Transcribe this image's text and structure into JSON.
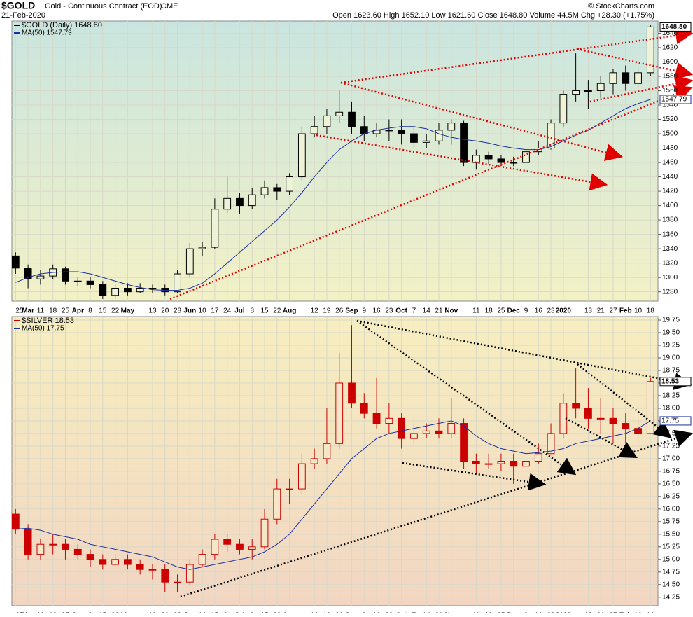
{
  "header": {
    "symbol": "$GOLD",
    "description": "Gold - Continuous Contract (EOD)",
    "exchange": "CME",
    "date": "21-Feb-2020",
    "stats": "Open 1623.60 High 1652.10 Low 1621.60 Close 1648.80 Volume 44.5M Chg +28.30 (+1.75%)",
    "credit": "© StockCharts.com"
  },
  "chart_data": [
    {
      "type": "candlestick",
      "legend": "$GOLD (Daily) 1648.80",
      "last_label": "1648.80",
      "x": [
        0,
        1,
        2,
        3,
        4,
        5,
        6,
        7,
        8,
        9,
        10,
        11,
        12,
        13,
        14,
        15,
        16,
        17,
        18,
        19,
        20,
        21,
        22,
        23,
        24,
        25,
        26,
        27,
        28,
        29,
        30,
        31,
        32,
        33,
        34,
        35,
        36,
        37,
        38,
        39,
        40,
        41,
        42,
        43,
        44,
        45,
        46,
        47,
        48,
        49,
        50,
        51
      ],
      "open": [
        1330,
        1313,
        1298,
        1302,
        1312,
        1295,
        1295,
        1290,
        1275,
        1285,
        1280,
        1285,
        1285,
        1280,
        1305,
        1340,
        1342,
        1395,
        1410,
        1400,
        1415,
        1425,
        1420,
        1440,
        1500,
        1510,
        1525,
        1530,
        1510,
        1500,
        1505,
        1505,
        1500,
        1488,
        1490,
        1505,
        1515,
        1460,
        1470,
        1465,
        1460,
        1460,
        1475,
        1480,
        1515,
        1555,
        1560,
        1560,
        1570,
        1585,
        1570,
        1585
      ],
      "high": [
        1335,
        1318,
        1310,
        1318,
        1315,
        1300,
        1300,
        1295,
        1290,
        1292,
        1292,
        1290,
        1290,
        1310,
        1348,
        1350,
        1410,
        1440,
        1418,
        1425,
        1435,
        1430,
        1445,
        1510,
        1525,
        1535,
        1560,
        1545,
        1525,
        1515,
        1520,
        1520,
        1510,
        1500,
        1515,
        1520,
        1518,
        1478,
        1475,
        1470,
        1468,
        1485,
        1490,
        1520,
        1560,
        1612,
        1575,
        1580,
        1590,
        1595,
        1592,
        1652
      ],
      "low": [
        1305,
        1285,
        1290,
        1298,
        1290,
        1288,
        1285,
        1270,
        1272,
        1275,
        1278,
        1278,
        1275,
        1278,
        1300,
        1330,
        1340,
        1390,
        1388,
        1395,
        1410,
        1408,
        1415,
        1435,
        1495,
        1500,
        1515,
        1500,
        1490,
        1495,
        1490,
        1485,
        1480,
        1480,
        1485,
        1485,
        1455,
        1450,
        1458,
        1455,
        1455,
        1458,
        1470,
        1478,
        1510,
        1545,
        1535,
        1550,
        1555,
        1560,
        1565,
        1580
      ],
      "close": [
        1313,
        1298,
        1302,
        1312,
        1295,
        1295,
        1290,
        1275,
        1285,
        1280,
        1285,
        1285,
        1280,
        1305,
        1340,
        1342,
        1395,
        1410,
        1400,
        1415,
        1425,
        1420,
        1440,
        1500,
        1510,
        1525,
        1530,
        1510,
        1500,
        1505,
        1505,
        1500,
        1488,
        1490,
        1505,
        1515,
        1460,
        1470,
        1465,
        1460,
        1460,
        1475,
        1480,
        1515,
        1555,
        1560,
        1560,
        1570,
        1585,
        1570,
        1585,
        1648.8
      ],
      "color": "#000000",
      "ma": {
        "name": "MA(50) 1547.79",
        "last_label": "1547.79",
        "color": "#1a2fa0",
        "values": [
          1293,
          1300,
          1305,
          1307,
          1308,
          1308,
          1305,
          1300,
          1295,
          1290,
          1286,
          1283,
          1282,
          1282,
          1285,
          1292,
          1305,
          1320,
          1335,
          1350,
          1365,
          1380,
          1398,
          1418,
          1440,
          1460,
          1478,
          1490,
          1500,
          1505,
          1508,
          1510,
          1510,
          1507,
          1500,
          1495,
          1492,
          1490,
          1487,
          1483,
          1480,
          1478,
          1478,
          1482,
          1490,
          1498,
          1505,
          1515,
          1525,
          1535,
          1542,
          1547.79
        ]
      },
      "xlim": [
        -0.3,
        51.6
      ],
      "ylim": [
        1267,
        1657
      ],
      "yticks": [
        1280,
        1300,
        1320,
        1340,
        1360,
        1380,
        1400,
        1420,
        1440,
        1460,
        1480,
        1500,
        1520,
        1540,
        1560,
        1580,
        1600,
        1620,
        1640
      ],
      "xticks": [
        {
          "value": 0,
          "label": "25"
        },
        {
          "value": 1,
          "label": "Mar"
        },
        {
          "value": 2,
          "label": "11"
        },
        {
          "value": 3,
          "label": "18"
        },
        {
          "value": 4,
          "label": "25"
        },
        {
          "value": 5,
          "label": "Apr"
        },
        {
          "value": 6,
          "label": "8"
        },
        {
          "value": 7,
          "label": "15"
        },
        {
          "value": 8,
          "label": "22"
        },
        {
          "value": 9,
          "label": "May"
        },
        {
          "value": 11,
          "label": "13"
        },
        {
          "value": 12,
          "label": "20"
        },
        {
          "value": 13,
          "label": "28"
        },
        {
          "value": 14,
          "label": "Jun"
        },
        {
          "value": 15,
          "label": "10"
        },
        {
          "value": 16,
          "label": "17"
        },
        {
          "value": 17,
          "label": "24"
        },
        {
          "value": 18,
          "label": "Jul"
        },
        {
          "value": 19,
          "label": "8"
        },
        {
          "value": 20,
          "label": "15"
        },
        {
          "value": 21,
          "label": "22"
        },
        {
          "value": 22,
          "label": "Aug"
        },
        {
          "value": 24,
          "label": "12"
        },
        {
          "value": 25,
          "label": "19"
        },
        {
          "value": 26,
          "label": "26"
        },
        {
          "value": 27,
          "label": "Sep"
        },
        {
          "value": 28,
          "label": "9"
        },
        {
          "value": 29,
          "label": "16"
        },
        {
          "value": 30,
          "label": "23"
        },
        {
          "value": 31,
          "label": "Oct"
        },
        {
          "value": 32,
          "label": "7"
        },
        {
          "value": 33,
          "label": "14"
        },
        {
          "value": 34,
          "label": "21"
        },
        {
          "value": 35,
          "label": "Nov"
        },
        {
          "value": 37,
          "label": "11"
        },
        {
          "value": 38,
          "label": "18"
        },
        {
          "value": 39,
          "label": "25"
        },
        {
          "value": 40,
          "label": "Dec"
        },
        {
          "value": 41,
          "label": "9"
        },
        {
          "value": 42,
          "label": "16"
        },
        {
          "value": 43,
          "label": "23"
        },
        {
          "value": 44,
          "label": "2020"
        },
        {
          "value": 46,
          "label": "13"
        },
        {
          "value": 47,
          "label": "21"
        },
        {
          "value": 48,
          "label": "27"
        },
        {
          "value": 49,
          "label": "Feb"
        },
        {
          "value": 50,
          "label": "10"
        },
        {
          "value": 51,
          "label": "18"
        }
      ],
      "grid": true
    },
    {
      "type": "candlestick",
      "legend": "$SILVER 18.53",
      "last_label": "18.53",
      "x": [
        0,
        1,
        2,
        3,
        4,
        5,
        6,
        7,
        8,
        9,
        10,
        11,
        12,
        13,
        14,
        15,
        16,
        17,
        18,
        19,
        20,
        21,
        22,
        23,
        24,
        25,
        26,
        27,
        28,
        29,
        30,
        31,
        32,
        33,
        34,
        35,
        36,
        37,
        38,
        39,
        40,
        41,
        42,
        43,
        44,
        45,
        46,
        47,
        48,
        49,
        50,
        51
      ],
      "open": [
        15.9,
        15.6,
        15.1,
        15.3,
        15.3,
        15.2,
        15.1,
        15.0,
        14.9,
        15.0,
        14.9,
        14.8,
        14.8,
        14.55,
        14.55,
        14.9,
        15.1,
        15.4,
        15.3,
        15.2,
        15.25,
        15.8,
        16.4,
        16.4,
        16.9,
        17.0,
        17.3,
        18.5,
        18.1,
        17.9,
        17.7,
        17.8,
        17.4,
        17.5,
        17.55,
        17.5,
        17.7,
        16.95,
        16.9,
        16.9,
        16.95,
        16.85,
        16.95,
        17.1,
        17.5,
        18.1,
        18.0,
        17.8,
        17.8,
        17.7,
        17.6,
        17.5
      ],
      "high": [
        16.0,
        15.7,
        15.4,
        15.5,
        15.4,
        15.3,
        15.2,
        15.1,
        15.1,
        15.1,
        15.0,
        14.9,
        14.9,
        14.7,
        15.0,
        15.2,
        15.5,
        15.5,
        15.4,
        15.4,
        16.0,
        16.6,
        16.6,
        17.1,
        17.2,
        18.0,
        19.1,
        19.65,
        18.3,
        18.6,
        18.1,
        17.9,
        17.7,
        17.7,
        17.8,
        18.2,
        17.8,
        17.1,
        17.1,
        17.1,
        17.1,
        17.1,
        17.3,
        17.7,
        18.3,
        18.8,
        18.4,
        18.2,
        18.0,
        17.9,
        17.8,
        18.6
      ],
      "low": [
        15.5,
        15.0,
        15.0,
        15.1,
        15.0,
        15.0,
        14.85,
        14.8,
        14.85,
        14.8,
        14.7,
        14.6,
        14.35,
        14.35,
        14.5,
        14.85,
        15.0,
        15.15,
        15.1,
        15.0,
        15.2,
        15.7,
        16.1,
        16.3,
        16.8,
        16.9,
        17.2,
        18.0,
        17.8,
        17.6,
        17.5,
        17.2,
        17.3,
        17.4,
        17.4,
        17.4,
        16.8,
        16.7,
        16.8,
        16.75,
        16.5,
        16.7,
        16.9,
        17.1,
        17.4,
        17.8,
        17.6,
        17.5,
        17.3,
        17.3,
        17.3,
        17.5
      ],
      "close": [
        15.6,
        15.1,
        15.3,
        15.3,
        15.2,
        15.1,
        15.0,
        14.9,
        15.0,
        14.9,
        14.8,
        14.8,
        14.55,
        14.55,
        14.9,
        15.1,
        15.4,
        15.3,
        15.2,
        15.25,
        15.8,
        16.4,
        16.4,
        16.9,
        17.0,
        17.3,
        18.5,
        18.1,
        17.9,
        17.7,
        17.8,
        17.4,
        17.5,
        17.55,
        17.5,
        17.7,
        16.95,
        16.9,
        16.9,
        16.95,
        16.85,
        16.95,
        17.1,
        17.5,
        18.1,
        18.0,
        17.8,
        17.8,
        17.7,
        17.6,
        17.5,
        18.53
      ],
      "color": "#cc0000",
      "ma": {
        "name": "MA(50) 17.75",
        "last_label": "17.75",
        "color": "#1a2fa0",
        "values": [
          15.6,
          15.62,
          15.58,
          15.5,
          15.45,
          15.4,
          15.3,
          15.25,
          15.2,
          15.15,
          15.1,
          15.05,
          14.95,
          14.85,
          14.8,
          14.85,
          14.9,
          14.95,
          15.0,
          15.05,
          15.15,
          15.3,
          15.5,
          15.8,
          16.1,
          16.4,
          16.7,
          17.0,
          17.2,
          17.4,
          17.5,
          17.55,
          17.6,
          17.65,
          17.7,
          17.75,
          17.65,
          17.45,
          17.3,
          17.2,
          17.15,
          17.1,
          17.12,
          17.15,
          17.2,
          17.3,
          17.35,
          17.4,
          17.45,
          17.5,
          17.6,
          17.75
        ]
      },
      "xlim": [
        -0.3,
        51.6
      ],
      "ylim": [
        14.08,
        19.82
      ],
      "yticks": [
        14.25,
        {
          "value": 14.5,
          "label": "14.50"
        },
        14.75,
        {
          "value": 15,
          "label": "15.00"
        },
        15.25,
        {
          "value": 15.5,
          "label": "15.50"
        },
        15.75,
        {
          "value": 16,
          "label": "16.00"
        },
        16.25,
        {
          "value": 16.5,
          "label": "16.50"
        },
        16.75,
        {
          "value": 17,
          "label": "17.00"
        },
        17.25,
        {
          "value": 17.5,
          "label": "17.50"
        },
        17.75,
        {
          "value": 18,
          "label": "18.00"
        },
        18.25,
        {
          "value": 18.5,
          "label": "18.50"
        },
        18.75,
        {
          "value": 19,
          "label": "19.00"
        },
        19.25,
        {
          "value": 19.5,
          "label": "19.50"
        },
        19.75
      ],
      "xticks": [
        {
          "value": 0,
          "label": "25"
        },
        {
          "value": 1,
          "label": "Mar"
        },
        {
          "value": 2,
          "label": "11"
        },
        {
          "value": 3,
          "label": "18"
        },
        {
          "value": 4,
          "label": "25"
        },
        {
          "value": 5,
          "label": "Apr"
        },
        {
          "value": 6,
          "label": "8"
        },
        {
          "value": 7,
          "label": "15"
        },
        {
          "value": 8,
          "label": "22"
        },
        {
          "value": 9,
          "label": "May"
        },
        {
          "value": 11,
          "label": "13"
        },
        {
          "value": 12,
          "label": "20"
        },
        {
          "value": 13,
          "label": "28"
        },
        {
          "value": 14,
          "label": "Jun"
        },
        {
          "value": 15,
          "label": "10"
        },
        {
          "value": 16,
          "label": "17"
        },
        {
          "value": 17,
          "label": "24"
        },
        {
          "value": 18,
          "label": "Jul"
        },
        {
          "value": 19,
          "label": "8"
        },
        {
          "value": 20,
          "label": "15"
        },
        {
          "value": 21,
          "label": "22"
        },
        {
          "value": 22,
          "label": "Aug"
        },
        {
          "value": 24,
          "label": "12"
        },
        {
          "value": 25,
          "label": "19"
        },
        {
          "value": 26,
          "label": "26"
        },
        {
          "value": 27,
          "label": "Sep"
        },
        {
          "value": 28,
          "label": "9"
        },
        {
          "value": 29,
          "label": "16"
        },
        {
          "value": 30,
          "label": "23"
        },
        {
          "value": 31,
          "label": "Oct"
        },
        {
          "value": 32,
          "label": "7"
        },
        {
          "value": 33,
          "label": "14"
        },
        {
          "value": 34,
          "label": "21"
        },
        {
          "value": 35,
          "label": "Nov"
        },
        {
          "value": 37,
          "label": "11"
        },
        {
          "value": 38,
          "label": "18"
        },
        {
          "value": 39,
          "label": "25"
        },
        {
          "value": 40,
          "label": "Dec"
        },
        {
          "value": 41,
          "label": "9"
        },
        {
          "value": 42,
          "label": "16"
        },
        {
          "value": 43,
          "label": "23"
        },
        {
          "value": 44,
          "label": "2020"
        },
        {
          "value": 46,
          "label": "13"
        },
        {
          "value": 47,
          "label": "21"
        },
        {
          "value": 48,
          "label": "27"
        },
        {
          "value": 49,
          "label": "Feb"
        },
        {
          "value": 50,
          "label": "10"
        },
        {
          "value": 51,
          "label": "18"
        }
      ],
      "grid": true
    }
  ]
}
